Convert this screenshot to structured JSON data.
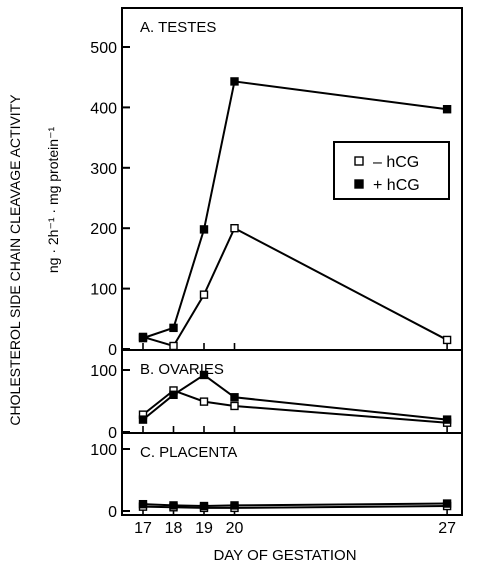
{
  "figure": {
    "ylabel_line1": "CHOLESTEROL SIDE CHAIN CLEAVAGE ACTIVITY",
    "ylabel_line2": "ng · 2h⁻¹ · mg protein⁻¹",
    "xlabel": "DAY OF GESTATION",
    "colors": {
      "ink": "#000000",
      "open_marker_fill": "#ffffff",
      "filled_marker_fill": "#000000"
    }
  },
  "chart_data": [
    {
      "type": "line",
      "title": "A. TESTES",
      "xlabel": "DAY OF GESTATION",
      "ylabel": "CHOLESTEROL SIDE CHAIN CLEAVAGE ACTIVITY ng · 2h⁻¹ · mg protein⁻¹",
      "ylim": [
        0,
        550
      ],
      "yticks": [
        0,
        100,
        200,
        300,
        400,
        500
      ],
      "xticks": [
        17,
        18,
        19,
        20,
        27
      ],
      "legend_position": "middle-right",
      "series": [
        {
          "name": "– hCG",
          "marker": "open-square",
          "x": [
            17,
            18,
            19,
            20,
            27
          ],
          "y": [
            20,
            5,
            90,
            200,
            15
          ]
        },
        {
          "name": "+ hCG",
          "marker": "filled-square",
          "x": [
            17,
            18,
            19,
            20,
            27
          ],
          "y": [
            18,
            35,
            198,
            443,
            397
          ]
        }
      ]
    },
    {
      "type": "line",
      "title": "B. OVARIES",
      "ylim": [
        0,
        130
      ],
      "yticks": [
        0,
        100
      ],
      "xticks": [
        17,
        18,
        19,
        20,
        27
      ],
      "series": [
        {
          "name": "– hCG",
          "marker": "open-square",
          "x": [
            17,
            18,
            19,
            20,
            27
          ],
          "y": [
            28,
            67,
            49,
            42,
            15
          ]
        },
        {
          "name": "+ hCG",
          "marker": "filled-square",
          "x": [
            17,
            18,
            19,
            20,
            27
          ],
          "y": [
            20,
            60,
            92,
            56,
            20
          ]
        }
      ]
    },
    {
      "type": "line",
      "title": "C. PLACENTA",
      "ylim": [
        0,
        130
      ],
      "yticks": [
        0,
        100
      ],
      "xticks": [
        17,
        18,
        19,
        20,
        27
      ],
      "series": [
        {
          "name": "– hCG",
          "marker": "open-square",
          "x": [
            17,
            18,
            19,
            20,
            27
          ],
          "y": [
            7,
            6,
            5,
            5,
            8
          ]
        },
        {
          "name": "+ hCG",
          "marker": "filled-square",
          "x": [
            17,
            18,
            19,
            20,
            27
          ],
          "y": [
            11,
            9,
            8,
            9,
            12
          ]
        }
      ]
    }
  ]
}
